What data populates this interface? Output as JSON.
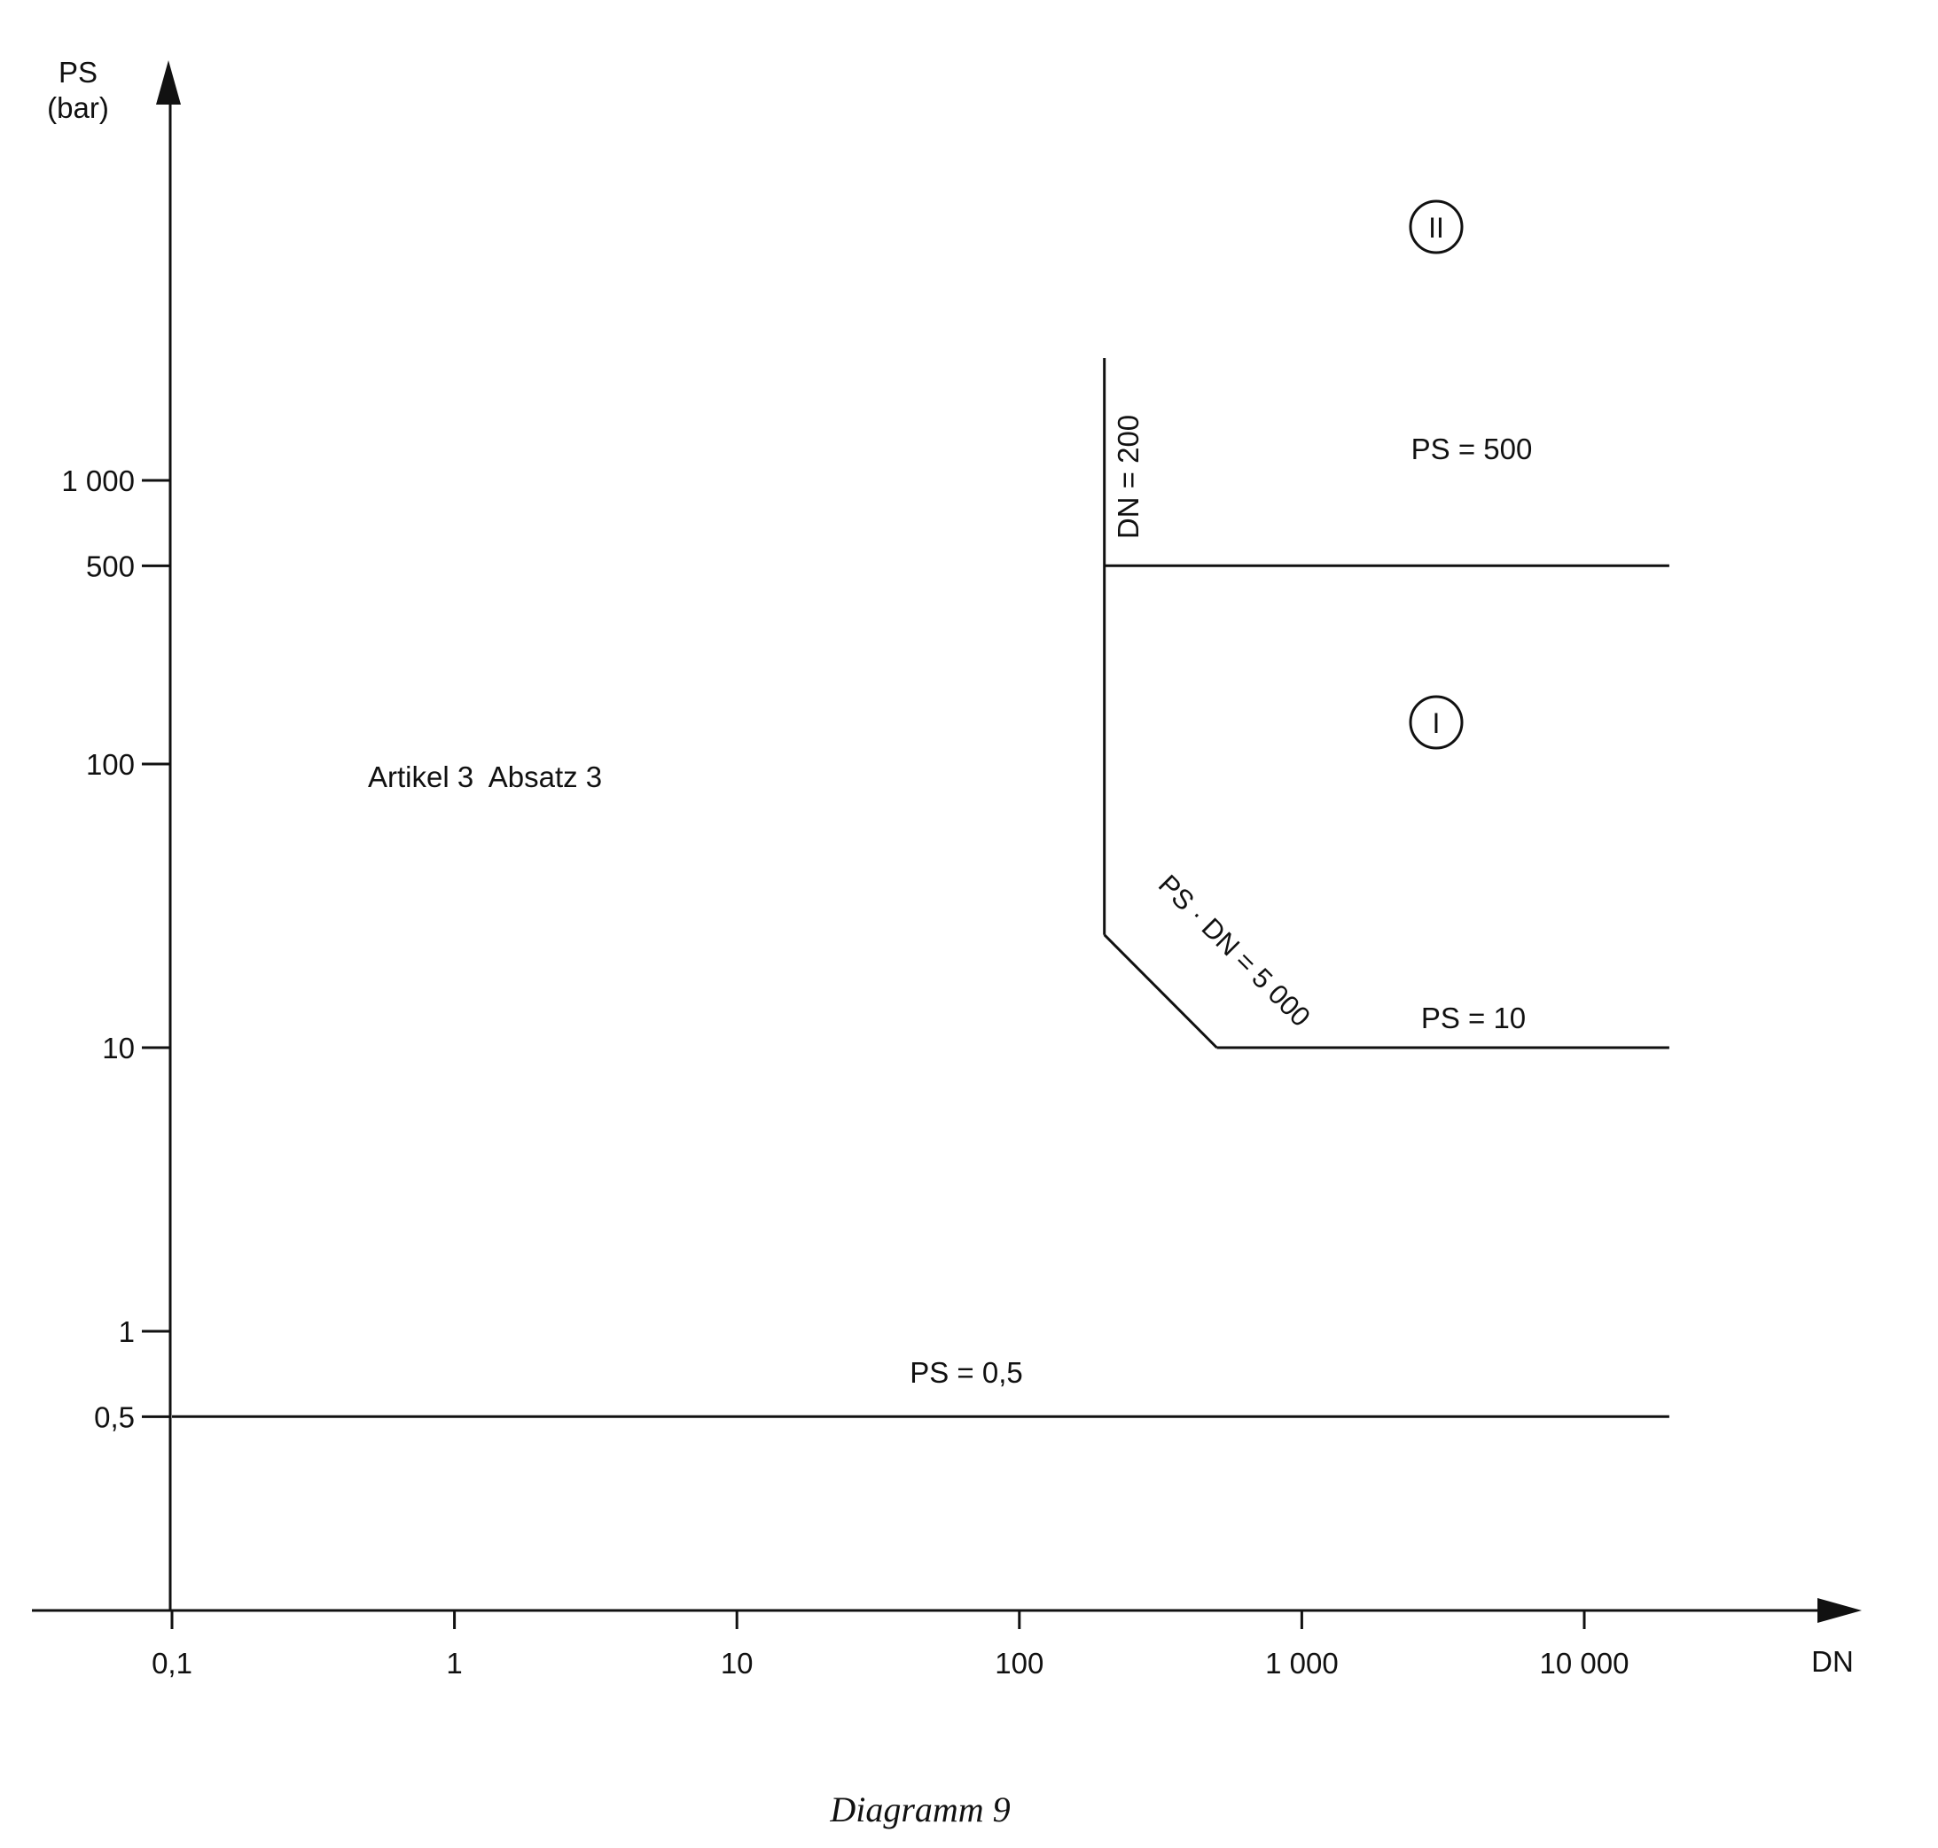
{
  "chart_data": {
    "type": "line",
    "title": "",
    "caption": "Diagramm 9",
    "xlabel": "DN",
    "ylabel": [
      "PS",
      "(bar)"
    ],
    "xscale": "log",
    "yscale": "log",
    "xlim": [
      0.1,
      10000
    ],
    "ylim": [
      0.5,
      1000
    ],
    "x_ticks": [
      {
        "value": 0.1,
        "label": "0,1"
      },
      {
        "value": 1,
        "label": "1"
      },
      {
        "value": 10,
        "label": "10"
      },
      {
        "value": 100,
        "label": "100"
      },
      {
        "value": 1000,
        "label": "1 000"
      },
      {
        "value": 10000,
        "label": "10 000"
      }
    ],
    "y_ticks": [
      {
        "value": 0.5,
        "label": "0,5"
      },
      {
        "value": 1,
        "label": "1"
      },
      {
        "value": 10,
        "label": "10"
      },
      {
        "value": 100,
        "label": "100"
      },
      {
        "value": 500,
        "label": "500"
      },
      {
        "value": 1000,
        "label": "1 000"
      }
    ],
    "series": [
      {
        "label": "PS = 0,5",
        "points": [
          [
            0.1,
            0.5
          ],
          [
            20000,
            0.5
          ]
        ]
      },
      {
        "label": "PS = 500",
        "points": [
          [
            200,
            500
          ],
          [
            20000,
            500
          ]
        ]
      },
      {
        "label": "PS = 10",
        "points": [
          [
            500,
            10
          ],
          [
            20000,
            10
          ]
        ]
      },
      {
        "label": "DN = 200",
        "points": [
          [
            200,
            25
          ],
          [
            200,
            2700
          ]
        ]
      },
      {
        "label": "PS · DN = 5 000",
        "points": [
          [
            200,
            25
          ],
          [
            500,
            10
          ]
        ]
      }
    ],
    "annotations": [
      {
        "text": "Artikel 3  Absatz 3",
        "region": "left"
      },
      {
        "text": "II",
        "region": "upper-right",
        "circled": true
      },
      {
        "text": "I",
        "region": "right",
        "circled": true
      }
    ],
    "grid": false,
    "legend": "none"
  }
}
